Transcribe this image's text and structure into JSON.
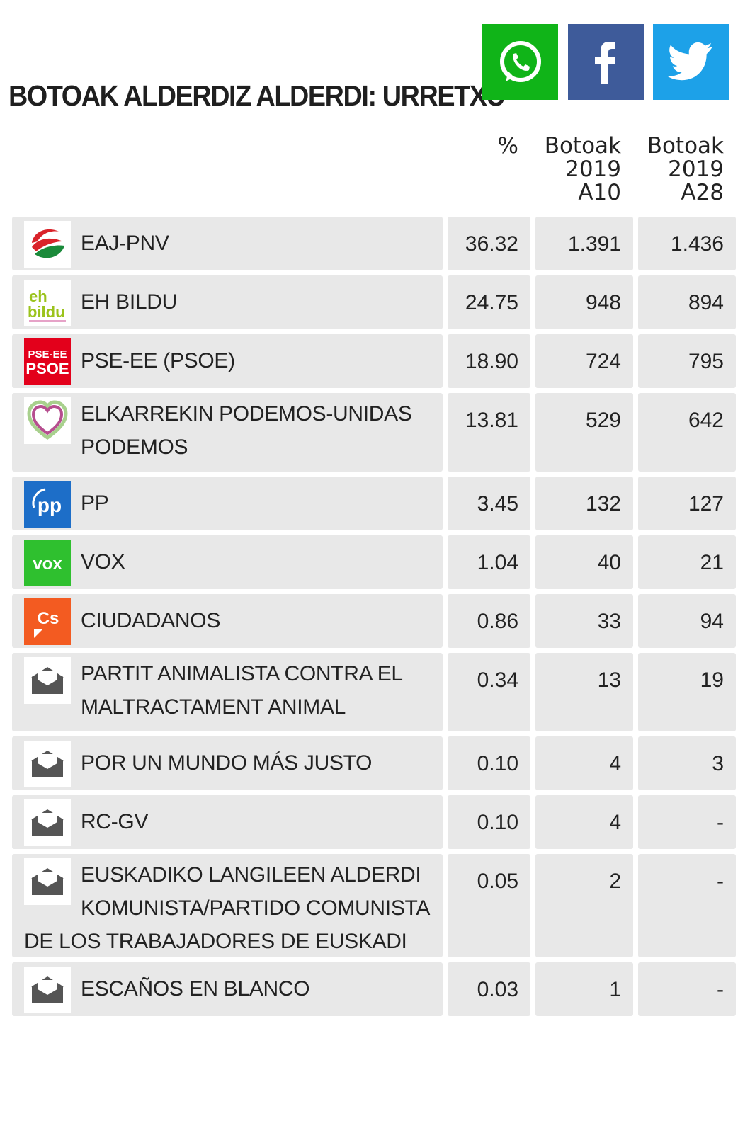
{
  "title": "BOTOAK ALDERDIZ ALDERDI: URRETXU",
  "share": [
    {
      "name": "whatsapp",
      "color": "#10b418"
    },
    {
      "name": "facebook",
      "color": "#3e5b9a"
    },
    {
      "name": "twitter",
      "color": "#1da1e8"
    }
  ],
  "columns": {
    "pct": "%",
    "b1": [
      "Botoak",
      "2019",
      "A10"
    ],
    "b2": [
      "Botoak",
      "2019",
      "A28"
    ]
  },
  "rows": [
    {
      "party": "EAJ-PNV",
      "logo": "eaj-pnv-logo",
      "pct": "36.32",
      "b1": "1.391",
      "b2": "1.436"
    },
    {
      "party": "EH BILDU",
      "logo": "eh-bildu-logo",
      "pct": "24.75",
      "b1": "948",
      "b2": "894"
    },
    {
      "party": "PSE-EE (PSOE)",
      "logo": "psoe-logo",
      "logo_text": [
        "PSE-EE",
        "PSOE"
      ],
      "pct": "18.90",
      "b1": "724",
      "b2": "795"
    },
    {
      "party": "ELKARREKIN PODEMOS-UNIDAS PODEMOS",
      "logo": "podemos-heart-logo",
      "pct": "13.81",
      "b1": "529",
      "b2": "642"
    },
    {
      "party": "PP",
      "logo": "pp-logo",
      "logo_text": "pp",
      "pct": "3.45",
      "b1": "132",
      "b2": "127"
    },
    {
      "party": "VOX",
      "logo": "vox-logo",
      "logo_text": "vox",
      "pct": "1.04",
      "b1": "40",
      "b2": "21"
    },
    {
      "party": "CIUDADANOS",
      "logo": "ciudadanos-logo",
      "logo_text": "Cs",
      "pct": "0.86",
      "b1": "33",
      "b2": "94"
    },
    {
      "party": "PARTIT ANIMALISTA CONTRA EL MALTRACTAMENT ANIMAL",
      "logo": "ballot-envelope-icon",
      "pct": "0.34",
      "b1": "13",
      "b2": "19"
    },
    {
      "party": "POR UN MUNDO MÁS JUSTO",
      "logo": "ballot-envelope-icon",
      "pct": "0.10",
      "b1": "4",
      "b2": "3"
    },
    {
      "party": "RC-GV",
      "logo": "ballot-envelope-icon",
      "pct": "0.10",
      "b1": "4",
      "b2": "-"
    },
    {
      "party": "EUSKADIKO LANGILEEN ALDERDI KOMUNISTA/PARTIDO COMUNISTA DE LOS TRABAJADORES DE EUSKADI",
      "logo": "ballot-envelope-icon",
      "pct": "0.05",
      "b1": "2",
      "b2": "-"
    },
    {
      "party": "ESCAÑOS EN BLANCO",
      "logo": "ballot-envelope-icon",
      "pct": "0.03",
      "b1": "1",
      "b2": "-"
    }
  ]
}
